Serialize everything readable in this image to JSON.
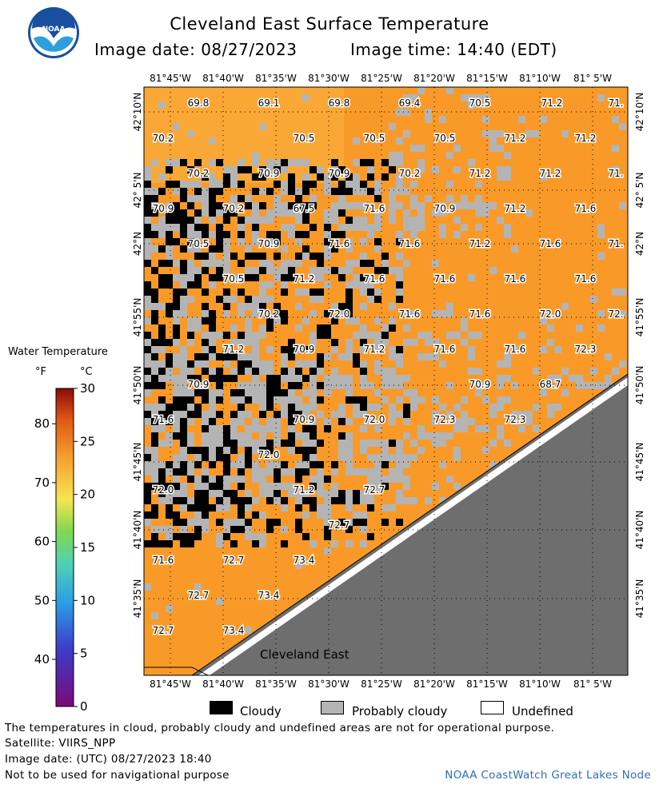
{
  "header": {
    "title": "Cleveland East Surface Temperature",
    "image_date": "Image date: 08/27/2023",
    "image_time": "Image time: 14:40 (EDT)"
  },
  "logo": {
    "name": "noaa-logo",
    "text": "NOAA"
  },
  "map": {
    "region_label": "Cleveland East",
    "lon_labels": [
      "81°45'W",
      "81°40'W",
      "81°35'W",
      "81°30'W",
      "81°25'W",
      "81°20'W",
      "81°15'W",
      "81°10'W",
      "81° 5'W"
    ],
    "lat_labels": [
      "42°10'N",
      "42° 5'N",
      "42°N",
      "41°55'N",
      "41°50'N",
      "41°45'N",
      "41°40'N",
      "41°35'N"
    ],
    "colors": {
      "water": "#f99a28",
      "cloud": "#000000",
      "probably_cloudy": "#b4b4b4",
      "land": "#6e6e6e",
      "undefined": "#ffffff",
      "warm_water": "#fbb540"
    },
    "temperature_labels": [
      {
        "label": "69.8",
        "lon_idx": 0.5,
        "row": 0
      },
      {
        "label": "69.1",
        "lon_idx": 1.5,
        "row": 0
      },
      {
        "label": "69.8",
        "lon_idx": 2.5,
        "row": 0
      },
      {
        "label": "69.4",
        "lon_idx": 3.5,
        "row": 0
      },
      {
        "label": "70.5",
        "lon_idx": 4.6,
        "row": 0
      },
      {
        "label": "71.2",
        "lon_idx": 5.6,
        "row": 0
      },
      {
        "label": "71.",
        "lon_idx": 6.6,
        "row": 0
      }
    ],
    "temps": [
      [
        "69.8",
        "69.1",
        "69.8",
        "69.4",
        "70.5",
        "71.2",
        "71."
      ],
      [
        "70.2",
        "70.5",
        "70.5",
        "70.5",
        "71.2",
        "71.2"
      ],
      [
        "70.2",
        "70.9",
        "70.9",
        "70.2",
        "71.2",
        "71.2",
        "71."
      ],
      [
        "70.9",
        "70.2",
        "67.5",
        "71.6",
        "70.9",
        "71.2",
        "71.6"
      ],
      [
        "70.5",
        "70.9",
        "71.6",
        "71.6",
        "71.2",
        "71.6",
        "71."
      ],
      [
        "70.5",
        "71.2",
        "71.6",
        "71.6",
        "71.6",
        "71.6"
      ],
      [
        "70.2",
        "72.0",
        "71.6",
        "71.6",
        "72.0",
        "72."
      ],
      [
        "71.2",
        "70.9",
        "71.2",
        "71.6",
        "71.6",
        "72.3"
      ],
      [
        "70.9",
        "70.9",
        "68.7"
      ],
      [
        "71.6",
        "70.9",
        "72.0",
        "72.3",
        "72.3"
      ],
      [
        "72.0"
      ],
      [
        "72.0",
        "71.2",
        "72.7"
      ],
      [
        "72.7"
      ],
      [
        "71.6",
        "72.7",
        "73.4"
      ],
      [
        "72.7",
        "73.4"
      ],
      [
        "72.7",
        "73.4"
      ]
    ]
  },
  "legend": {
    "title": "Water Temperature",
    "unit_f": "°F",
    "unit_c": "°C",
    "f_ticks": [
      "80",
      "70",
      "60",
      "50",
      "40"
    ],
    "c_ticks": [
      "30",
      "25",
      "20",
      "15",
      "10",
      "5",
      "0"
    ],
    "range_c": [
      0,
      30
    ]
  },
  "key": {
    "cloudy": "Cloudy",
    "probably_cloudy": "Probably cloudy",
    "undefined": "Undefined"
  },
  "footer": {
    "line1": "The temperatures in cloud, probably cloudy and undefined areas are not for operational purpose.",
    "line2": "Satellite: VIIRS_NPP",
    "line3": "Image date: (UTC) 08/27/2023  18:40",
    "line4": "Not to be used for navigational purpose",
    "credit": "NOAA CoastWatch Great Lakes Node"
  }
}
